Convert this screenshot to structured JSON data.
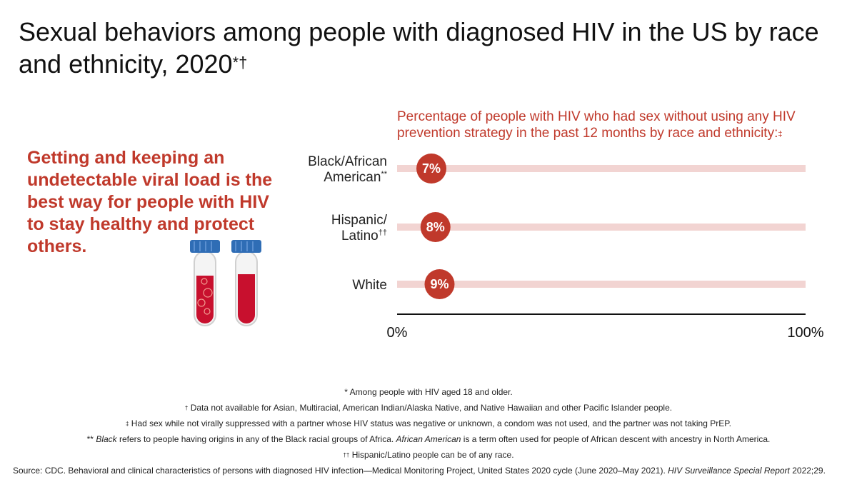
{
  "title": "Sexual behaviors among people with diagnosed HIV in the US by race and ethnicity, 2020",
  "title_marks": "*†",
  "message": "Getting and keeping an undetectable viral load is the best way for people with HIV to stay healthy and protect others.",
  "colors": {
    "accent": "#c0392b",
    "track": "#f2d4d2",
    "axis": "#111111",
    "cap": "#2f6db5"
  },
  "icons": [
    "blood-sample-tube-icon",
    "blood-sample-tube-icon"
  ],
  "chart_data": {
    "type": "bar",
    "subtitle": "Percentage of people with HIV who had sex without using any HIV prevention strategy in the past 12 months by race and ethnicity:",
    "subtitle_mark": "‡",
    "categories": [
      {
        "lines": [
          "Black/African",
          "American"
        ],
        "mark": "**"
      },
      {
        "lines": [
          "Hispanic/",
          "Latino"
        ],
        "mark": "††"
      },
      {
        "lines": [
          "White"
        ],
        "mark": ""
      }
    ],
    "values": [
      7,
      8,
      9
    ],
    "value_labels": [
      "7%",
      "8%",
      "9%"
    ],
    "xlim": [
      0,
      100
    ],
    "tick_labels": [
      "0%",
      "100%"
    ]
  },
  "footnotes": {
    "n1": "* Among people with HIV aged 18 and older.",
    "n2_mark": "†",
    "n2": " Data not available for Asian, Multiracial, American Indian/Alaska Native, and Native Hawaiian and other Pacific Islander people.",
    "n3_mark": "‡",
    "n3": " Had sex while not virally suppressed with a partner whose HIV status was negative or unknown, a condom was not used, and the partner was not taking PrEP.",
    "n4_prefix": "** ",
    "n4_em1": "Black",
    "n4_mid": " refers to people having origins in any of the Black racial groups of Africa. ",
    "n4_em2": "African American",
    "n4_end": " is a term often used for people of African descent with ancestry in North America.",
    "n5_mark": "††",
    "n5": " Hispanic/Latino people can be of any race.",
    "source": "Source: CDC. Behavioral and clinical characteristics of persons with diagnosed HIV infection—Medical Monitoring Project, United States 2020 cycle (June 2020–May 2021). ",
    "source_em": "HIV Surveillance Special Report",
    "source_end": " 2022;29."
  }
}
